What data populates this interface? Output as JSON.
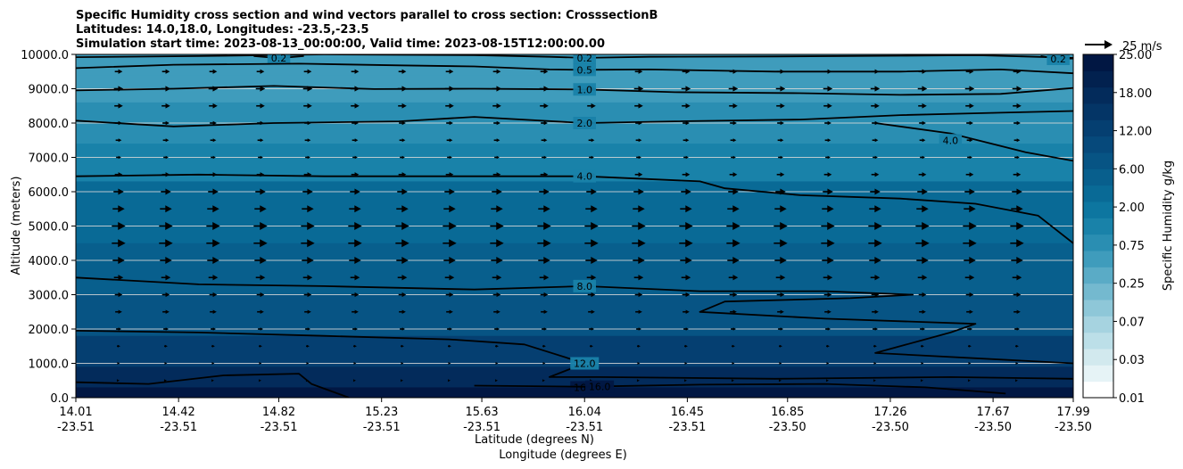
{
  "chart_data": {
    "type": "contourf",
    "title_lines": [
      "Specific Humidity cross section and wind vectors parallel to cross section: CrosssectionB",
      "Latitudes: 14.0,18.0, Longitudes: -23.5,-23.5",
      "Simulation start time: 2023-08-13_00:00:00, Valid time: 2023-08-15T12:00:00.00"
    ],
    "ylabel": "Altitude (meters)",
    "xlabel_lat": "Latitude (degrees N)",
    "xlabel_lon": "Longitude (degrees E)",
    "ylim": [
      0,
      10000
    ],
    "y_ticks": [
      "0.0",
      "1000.0",
      "2000.0",
      "3000.0",
      "4000.0",
      "5000.0",
      "6000.0",
      "7000.0",
      "8000.0",
      "9000.0",
      "10000.0"
    ],
    "x_ticks": [
      {
        "lat": "14.01",
        "lon": "-23.51"
      },
      {
        "lat": "14.42",
        "lon": "-23.51"
      },
      {
        "lat": "14.82",
        "lon": "-23.51"
      },
      {
        "lat": "15.23",
        "lon": "-23.51"
      },
      {
        "lat": "15.63",
        "lon": "-23.51"
      },
      {
        "lat": "16.04",
        "lon": "-23.51"
      },
      {
        "lat": "16.45",
        "lon": "-23.51"
      },
      {
        "lat": "16.85",
        "lon": "-23.50"
      },
      {
        "lat": "17.26",
        "lon": "-23.50"
      },
      {
        "lat": "17.67",
        "lon": "-23.50"
      },
      {
        "lat": "17.99",
        "lon": "-23.50"
      }
    ],
    "colorbar": {
      "label": "Specific Humidity g/kg",
      "tick_labels": [
        "0.01",
        "0.03",
        "0.07",
        "0.25",
        "0.75",
        "2.00",
        "6.00",
        "12.00",
        "18.00",
        "25.00"
      ],
      "colors": [
        "#ffffff",
        "#e6f3f6",
        "#d2e9ee",
        "#bcdfe8",
        "#a6d3e0",
        "#8ec7d8",
        "#74b9cf",
        "#5aabc6",
        "#3f9cbc",
        "#2a8eb2",
        "#1982a9",
        "#0d76a0",
        "#096a96",
        "#085f8d",
        "#075484",
        "#06497b",
        "#053f71",
        "#043566",
        "#032b5b",
        "#02214f",
        "#011743"
      ]
    },
    "quiver_key": {
      "label": "25 m/s",
      "speed": 25
    },
    "contours": [
      {
        "label": "0.2",
        "label_at": {
          "lat": 16.04,
          "alt": 9900
        },
        "points": [
          [
            14.01,
            9920
          ],
          [
            14.5,
            9950
          ],
          [
            15.0,
            10000
          ],
          [
            15.6,
            9980
          ],
          [
            15.9,
            9930
          ],
          [
            16.04,
            9900
          ],
          [
            16.3,
            9930
          ],
          [
            16.8,
            9940
          ],
          [
            17.3,
            9960
          ],
          [
            17.6,
            9980
          ],
          [
            17.99,
            9900
          ]
        ]
      },
      {
        "label": "0.2",
        "label_at": {
          "lat": 14.82,
          "alt": 9890
        },
        "points": [
          [
            14.72,
            9950
          ],
          [
            14.82,
            9890
          ],
          [
            14.92,
            9950
          ]
        ]
      },
      {
        "label": "0.2",
        "label_at": {
          "lat": 17.93,
          "alt": 9870
        },
        "points": [
          [
            17.86,
            9950
          ],
          [
            17.93,
            9870
          ],
          [
            17.99,
            9880
          ]
        ]
      },
      {
        "label": "0.5",
        "label_at": {
          "lat": 16.04,
          "alt": 9550
        },
        "points": [
          [
            14.01,
            9600
          ],
          [
            14.4,
            9700
          ],
          [
            14.9,
            9730
          ],
          [
            15.3,
            9680
          ],
          [
            15.6,
            9650
          ],
          [
            15.9,
            9560
          ],
          [
            16.04,
            9550
          ],
          [
            16.3,
            9560
          ],
          [
            16.8,
            9500
          ],
          [
            17.3,
            9500
          ],
          [
            17.7,
            9560
          ],
          [
            17.99,
            9450
          ]
        ]
      },
      {
        "label": "1.0",
        "label_at": {
          "lat": 16.04,
          "alt": 8980
        },
        "points": [
          [
            14.01,
            8950
          ],
          [
            14.4,
            9000
          ],
          [
            14.8,
            9080
          ],
          [
            15.2,
            8990
          ],
          [
            15.6,
            9000
          ],
          [
            16.04,
            8980
          ],
          [
            16.4,
            8900
          ],
          [
            16.9,
            8870
          ],
          [
            17.3,
            8820
          ],
          [
            17.7,
            8850
          ],
          [
            17.99,
            9020
          ]
        ]
      },
      {
        "label": "2.0",
        "label_at": {
          "lat": 16.04,
          "alt": 8000
        },
        "points": [
          [
            14.01,
            8070
          ],
          [
            14.4,
            7900
          ],
          [
            14.8,
            8000
          ],
          [
            15.3,
            8050
          ],
          [
            15.6,
            8180
          ],
          [
            16.04,
            8000
          ],
          [
            16.4,
            8050
          ],
          [
            16.9,
            8100
          ],
          [
            17.3,
            8230
          ],
          [
            17.7,
            8300
          ],
          [
            17.99,
            8350
          ]
        ]
      },
      {
        "label": "4.0",
        "label_at": {
          "lat": 16.04,
          "alt": 6450
        },
        "points": [
          [
            14.01,
            6450
          ],
          [
            14.5,
            6500
          ],
          [
            15.0,
            6450
          ],
          [
            15.5,
            6450
          ],
          [
            16.04,
            6450
          ],
          [
            16.5,
            6300
          ],
          [
            16.6,
            6100
          ],
          [
            16.9,
            5900
          ],
          [
            17.3,
            5800
          ],
          [
            17.6,
            5650
          ],
          [
            17.85,
            5300
          ],
          [
            17.99,
            4500
          ]
        ]
      },
      {
        "label": "4.0",
        "label_at": {
          "lat": 17.5,
          "alt": 7500
        },
        "points": [
          [
            17.2,
            8000
          ],
          [
            17.5,
            7700
          ],
          [
            17.8,
            7150
          ],
          [
            17.99,
            6900
          ]
        ]
      },
      {
        "label": "8.0",
        "label_at": {
          "lat": 16.04,
          "alt": 3250
        },
        "points": [
          [
            14.01,
            3500
          ],
          [
            14.5,
            3300
          ],
          [
            15.0,
            3250
          ],
          [
            15.6,
            3150
          ],
          [
            16.04,
            3250
          ],
          [
            16.5,
            3100
          ],
          [
            17.0,
            3100
          ],
          [
            17.35,
            3000
          ],
          [
            17.1,
            2900
          ],
          [
            16.6,
            2800
          ],
          [
            16.5,
            2500
          ],
          [
            17.0,
            2300
          ],
          [
            17.6,
            2150
          ],
          [
            17.5,
            1900
          ],
          [
            17.2,
            1300
          ],
          [
            17.99,
            1000
          ]
        ]
      },
      {
        "label": "12.0",
        "label_at": {
          "lat": 16.04,
          "alt": 1000
        },
        "points": [
          [
            14.01,
            1950
          ],
          [
            14.5,
            1900
          ],
          [
            15.0,
            1800
          ],
          [
            15.5,
            1700
          ],
          [
            15.8,
            1550
          ],
          [
            16.04,
            1000
          ],
          [
            15.9,
            600
          ],
          [
            16.1,
            600
          ],
          [
            16.8,
            550
          ],
          [
            17.5,
            600
          ],
          [
            17.99,
            550
          ]
        ]
      },
      {
        "label": "16.0",
        "label_at": {
          "lat": 16.04,
          "alt": 300
        },
        "points": [
          [
            14.01,
            450
          ],
          [
            14.3,
            400
          ],
          [
            14.6,
            650
          ],
          [
            14.9,
            700
          ],
          [
            14.95,
            400
          ],
          [
            15.1,
            0
          ]
        ]
      },
      {
        "label": "16.0",
        "label_at": {
          "lat": 16.1,
          "alt": 320
        },
        "points": [
          [
            15.6,
            350
          ],
          [
            16.04,
            320
          ],
          [
            16.5,
            380
          ],
          [
            17.0,
            400
          ],
          [
            17.4,
            300
          ],
          [
            17.72,
            120
          ]
        ]
      }
    ],
    "humidity_layers": [
      {
        "alt_top": 10000,
        "value": 0.5
      },
      {
        "alt_top": 9400,
        "value": 1.0
      },
      {
        "alt_top": 8600,
        "value": 2.0
      },
      {
        "alt_top": 7400,
        "value": 4.0
      },
      {
        "alt_top": 6300,
        "value": 6.0
      },
      {
        "alt_top": 4500,
        "value": 8.0
      },
      {
        "alt_top": 3000,
        "value": 10.0
      },
      {
        "alt_top": 1800,
        "value": 12.0
      },
      {
        "alt_top": 900,
        "value": 15.0
      },
      {
        "alt_top": 300,
        "value": 18.0
      }
    ],
    "wind_levels": [
      {
        "alt": 9500,
        "u": 9
      },
      {
        "alt": 9000,
        "u": 11
      },
      {
        "alt": 8500,
        "u": 10
      },
      {
        "alt": 8000,
        "u": 8
      },
      {
        "alt": 7500,
        "u": 7
      },
      {
        "alt": 7000,
        "u": 6
      },
      {
        "alt": 6500,
        "u": 9
      },
      {
        "alt": 6000,
        "u": 12
      },
      {
        "alt": 5500,
        "u": 14
      },
      {
        "alt": 5000,
        "u": 16
      },
      {
        "alt": 4500,
        "u": 16
      },
      {
        "alt": 4000,
        "u": 14
      },
      {
        "alt": 3500,
        "u": 11
      },
      {
        "alt": 3000,
        "u": 9
      },
      {
        "alt": 2500,
        "u": 8
      },
      {
        "alt": 2000,
        "u": 6
      },
      {
        "alt": 1500,
        "u": 4
      },
      {
        "alt": 1000,
        "u": 3
      },
      {
        "alt": 500,
        "u": 2
      }
    ]
  }
}
